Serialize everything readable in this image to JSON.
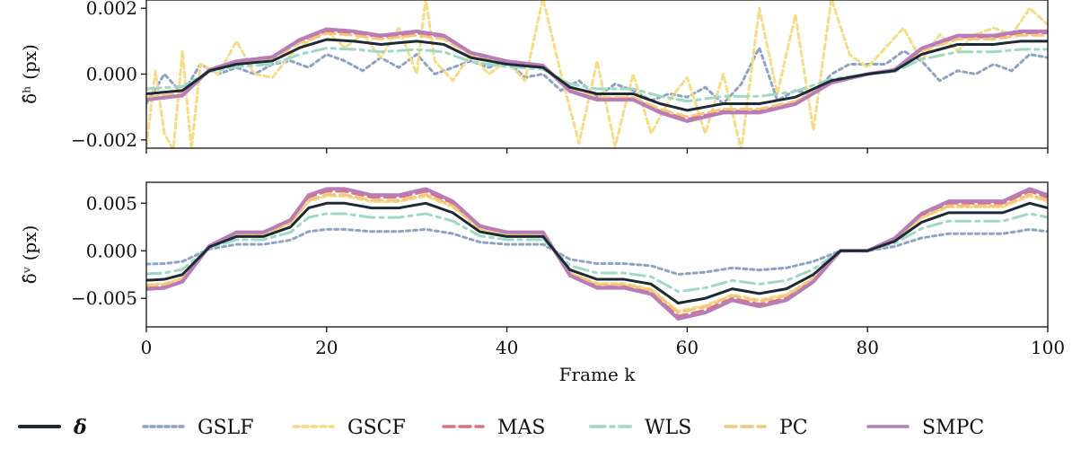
{
  "chart_data": [
    {
      "type": "line",
      "ylabel": "δ̂ʰ (px)",
      "xlim": [
        0,
        100
      ],
      "ylim": [
        -0.00225,
        0.00225
      ],
      "yticks": [
        -0.002,
        0.0,
        0.002
      ],
      "ytick_labels": [
        "−0.002",
        "0.000",
        "0.002"
      ],
      "series": [
        {
          "name": "δ",
          "color": "#1c2a33",
          "dash": "solid",
          "key": [
            [
              0,
              -0.0006
            ],
            [
              4,
              -0.0005
            ],
            [
              7,
              0.0001
            ],
            [
              10,
              0.0003
            ],
            [
              14,
              0.0004
            ],
            [
              17,
              0.0008
            ],
            [
              20,
              0.00105
            ],
            [
              23,
              0.001
            ],
            [
              26,
              0.0009
            ],
            [
              30,
              0.001
            ],
            [
              33,
              0.0009
            ],
            [
              36,
              0.0005
            ],
            [
              40,
              0.0003
            ],
            [
              44,
              0.0002
            ],
            [
              47,
              -0.0004
            ],
            [
              50,
              -0.0006
            ],
            [
              54,
              -0.0006
            ],
            [
              57,
              -0.0009
            ],
            [
              60,
              -0.0011
            ],
            [
              64,
              -0.0009
            ],
            [
              68,
              -0.0009
            ],
            [
              72,
              -0.0007
            ],
            [
              76,
              -0.0002
            ],
            [
              80,
              0.0
            ],
            [
              83,
              0.0001
            ],
            [
              86,
              0.0006
            ],
            [
              90,
              0.0009
            ],
            [
              94,
              0.0009
            ],
            [
              97,
              0.001
            ],
            [
              100,
              0.001
            ]
          ]
        },
        {
          "name": "GSLF",
          "color": "#8ea3c4",
          "dash": "4,4",
          "key": [
            [
              0,
              -0.0009
            ],
            [
              2,
              0.0
            ],
            [
              4,
              -0.0006
            ],
            [
              6,
              0.0003
            ],
            [
              8,
              0.0
            ],
            [
              10,
              0.0002
            ],
            [
              12,
              0.0
            ],
            [
              14,
              0.0003
            ],
            [
              16,
              0.0004
            ],
            [
              18,
              0.0002
            ],
            [
              20,
              0.0006
            ],
            [
              22,
              0.0004
            ],
            [
              24,
              0.0001
            ],
            [
              26,
              0.0005
            ],
            [
              28,
              0.0002
            ],
            [
              30,
              0.0006
            ],
            [
              32,
              0.0
            ],
            [
              34,
              0.0002
            ],
            [
              36,
              0.0004
            ],
            [
              38,
              0.0002
            ],
            [
              40,
              0.0004
            ],
            [
              42,
              -0.0001
            ],
            [
              44,
              0.0
            ],
            [
              46,
              -0.0005
            ],
            [
              48,
              -0.0002
            ],
            [
              50,
              -0.0007
            ],
            [
              52,
              -0.0003
            ],
            [
              54,
              -0.0005
            ],
            [
              56,
              -0.0008
            ],
            [
              58,
              -0.0006
            ],
            [
              60,
              -0.0007
            ],
            [
              62,
              -0.0004
            ],
            [
              64,
              -0.0009
            ],
            [
              66,
              -0.0003
            ],
            [
              68,
              0.0008
            ],
            [
              70,
              -0.0008
            ],
            [
              72,
              -0.0005
            ],
            [
              74,
              -0.0006
            ],
            [
              76,
              0.0
            ],
            [
              78,
              0.0003
            ],
            [
              80,
              0.0003
            ],
            [
              82,
              0.0003
            ],
            [
              84,
              0.0007
            ],
            [
              86,
              0.0004
            ],
            [
              88,
              -0.0002
            ],
            [
              90,
              0.0001
            ],
            [
              92,
              0.0
            ],
            [
              94,
              0.0003
            ],
            [
              96,
              0.0001
            ],
            [
              98,
              0.0006
            ],
            [
              100,
              0.0005
            ]
          ]
        },
        {
          "name": "GSCF",
          "color": "#f4dc88",
          "dash": "6,4",
          "key": [
            [
              0,
              -0.0022
            ],
            [
              1,
              0.0001
            ],
            [
              2,
              -0.0018
            ],
            [
              3,
              -0.0023
            ],
            [
              4,
              0.0007
            ],
            [
              5,
              -0.0023
            ],
            [
              6,
              0.0003
            ],
            [
              8,
              0.0
            ],
            [
              10,
              0.001
            ],
            [
              12,
              0.0
            ],
            [
              14,
              -0.0001
            ],
            [
              16,
              0.0006
            ],
            [
              18,
              0.001
            ],
            [
              20,
              0.0013
            ],
            [
              22,
              0.0008
            ],
            [
              24,
              0.0012
            ],
            [
              26,
              0.0005
            ],
            [
              28,
              0.0014
            ],
            [
              30,
              0.0
            ],
            [
              31,
              0.0023
            ],
            [
              32,
              0.0004
            ],
            [
              34,
              -0.0002
            ],
            [
              36,
              0.0006
            ],
            [
              38,
              0.0
            ],
            [
              40,
              0.0004
            ],
            [
              42,
              -0.0002
            ],
            [
              44,
              0.0023
            ],
            [
              46,
              0.0
            ],
            [
              48,
              -0.0021
            ],
            [
              50,
              0.0004
            ],
            [
              52,
              -0.0022
            ],
            [
              54,
              0.0
            ],
            [
              56,
              -0.0018
            ],
            [
              58,
              -0.0008
            ],
            [
              60,
              -0.0001
            ],
            [
              62,
              -0.0018
            ],
            [
              64,
              0.0
            ],
            [
              66,
              -0.0023
            ],
            [
              68,
              0.002
            ],
            [
              70,
              -0.0006
            ],
            [
              72,
              0.0018
            ],
            [
              74,
              -0.0017
            ],
            [
              76,
              0.0023
            ],
            [
              78,
              0.0006
            ],
            [
              80,
              0.0002
            ],
            [
              82,
              0.0008
            ],
            [
              84,
              0.0014
            ],
            [
              86,
              0.0004
            ],
            [
              88,
              0.0012
            ],
            [
              90,
              0.0007
            ],
            [
              92,
              0.0012
            ],
            [
              94,
              0.0014
            ],
            [
              96,
              0.0012
            ],
            [
              98,
              0.002
            ],
            [
              100,
              0.0015
            ]
          ]
        },
        {
          "name": "MAS",
          "color": "#d9737a",
          "dash": "12,6",
          "scale": 1.25
        },
        {
          "name": "WLS",
          "color": "#9fd8c4",
          "dash": "16,6,4,6",
          "scale": 0.75
        },
        {
          "name": "PC",
          "color": "#f2c67d",
          "dash": "12,6",
          "scale": 1.18
        },
        {
          "name": "SMPC",
          "color": "#b87cb8",
          "dash": "solid",
          "scale": 1.3
        }
      ]
    },
    {
      "type": "line",
      "xlabel": "Frame k",
      "ylabel": "δ̂ᵛ (px)",
      "xlim": [
        0,
        100
      ],
      "ylim": [
        -0.008,
        0.0072
      ],
      "yticks": [
        -0.005,
        0.0,
        0.005
      ],
      "ytick_labels": [
        "−0.005",
        "0.000",
        "0.005"
      ],
      "xticks": [
        0,
        20,
        40,
        60,
        80,
        100
      ],
      "xtick_labels": [
        "0",
        "20",
        "40",
        "60",
        "80",
        "100"
      ],
      "series": [
        {
          "name": "δ",
          "color": "#1c2a33",
          "dash": "solid",
          "key": [
            [
              0,
              -0.0031
            ],
            [
              2,
              -0.003
            ],
            [
              4,
              -0.0025
            ],
            [
              7,
              0.0004
            ],
            [
              10,
              0.0015
            ],
            [
              13,
              0.0015
            ],
            [
              16,
              0.0025
            ],
            [
              18,
              0.0045
            ],
            [
              20,
              0.005
            ],
            [
              22,
              0.005
            ],
            [
              25,
              0.0045
            ],
            [
              28,
              0.0045
            ],
            [
              31,
              0.005
            ],
            [
              34,
              0.004
            ],
            [
              37,
              0.002
            ],
            [
              40,
              0.0015
            ],
            [
              44,
              0.0015
            ],
            [
              47,
              -0.002
            ],
            [
              50,
              -0.003
            ],
            [
              53,
              -0.003
            ],
            [
              56,
              -0.0035
            ],
            [
              59,
              -0.0055
            ],
            [
              62,
              -0.005
            ],
            [
              65,
              -0.004
            ],
            [
              68,
              -0.0045
            ],
            [
              71,
              -0.004
            ],
            [
              74,
              -0.0025
            ],
            [
              77,
              0.0
            ],
            [
              80,
              0.0
            ],
            [
              83,
              0.001
            ],
            [
              86,
              0.003
            ],
            [
              89,
              0.004
            ],
            [
              92,
              0.004
            ],
            [
              95,
              0.004
            ],
            [
              98,
              0.005
            ],
            [
              100,
              0.0045
            ]
          ]
        },
        {
          "name": "GSLF",
          "color": "#8ea3c4",
          "dash": "4,4",
          "scale": 0.45
        },
        {
          "name": "GSCF",
          "color": "#f4dc88",
          "dash": "6,4",
          "scale": 1.15
        },
        {
          "name": "MAS",
          "color": "#d9737a",
          "dash": "12,6",
          "scale": 1.25
        },
        {
          "name": "WLS",
          "color": "#9fd8c4",
          "dash": "16,6,4,6",
          "scale": 0.78
        },
        {
          "name": "PC",
          "color": "#f2c67d",
          "dash": "12,6",
          "scale": 1.18
        },
        {
          "name": "SMPC",
          "color": "#b87cb8",
          "dash": "solid",
          "scale": 1.3
        }
      ]
    }
  ],
  "legend": {
    "placement": "bottom",
    "items": [
      {
        "label": "δ",
        "color": "#1c2a33",
        "dash": "solid",
        "bold": true
      },
      {
        "label": "GSLF",
        "color": "#8ea3c4",
        "dash": "4,4"
      },
      {
        "label": "GSCF",
        "color": "#f4dc88",
        "dash": "6,4"
      },
      {
        "label": "MAS",
        "color": "#d9737a",
        "dash": "12,6"
      },
      {
        "label": "WLS",
        "color": "#9fd8c4",
        "dash": "16,6,4,6"
      },
      {
        "label": "PC",
        "color": "#f2c67d",
        "dash": "12,6"
      },
      {
        "label": "SMPC",
        "color": "#b87cb8",
        "dash": "solid"
      }
    ]
  }
}
